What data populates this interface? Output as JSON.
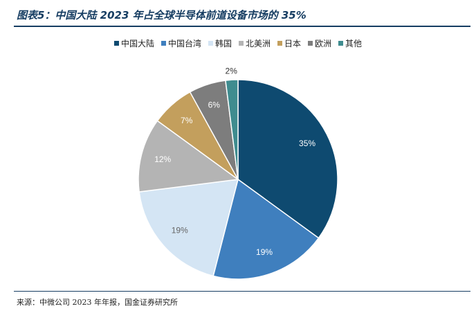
{
  "header": {
    "title": "图表5：中国大陆 2023 年占全球半导体前道设备市场的 35%"
  },
  "footer": {
    "source": "来源：中微公司 2023 年年报，国金证券研究所"
  },
  "chart_data": {
    "type": "pie",
    "title": "图表5：中国大陆 2023 年占全球半导体前道设备市场的 35%",
    "legend_position": "top",
    "start_angle_deg": 0,
    "direction": "clockwise",
    "slices": [
      {
        "name": "中国大陆",
        "value": 35,
        "label": "35%",
        "color": "#0e4a70",
        "label_color": "#ffffff"
      },
      {
        "name": "中国台湾",
        "value": 19,
        "label": "19%",
        "color": "#3f7fbe",
        "label_color": "#ffffff"
      },
      {
        "name": "韩国",
        "value": 19,
        "label": "19%",
        "color": "#d4e5f4",
        "label_color": "#666666"
      },
      {
        "name": "北美洲",
        "value": 12,
        "label": "12%",
        "color": "#b4b4b4",
        "label_color": "#ffffff"
      },
      {
        "name": "日本",
        "value": 7,
        "label": "7%",
        "color": "#c39f5d",
        "label_color": "#ffffff"
      },
      {
        "name": "欧洲",
        "value": 6,
        "label": "6%",
        "color": "#7d7d7d",
        "label_color": "#ffffff"
      },
      {
        "name": "其他",
        "value": 2,
        "label": "2%",
        "color": "#3f8c8f",
        "label_color": "#333333"
      }
    ]
  }
}
